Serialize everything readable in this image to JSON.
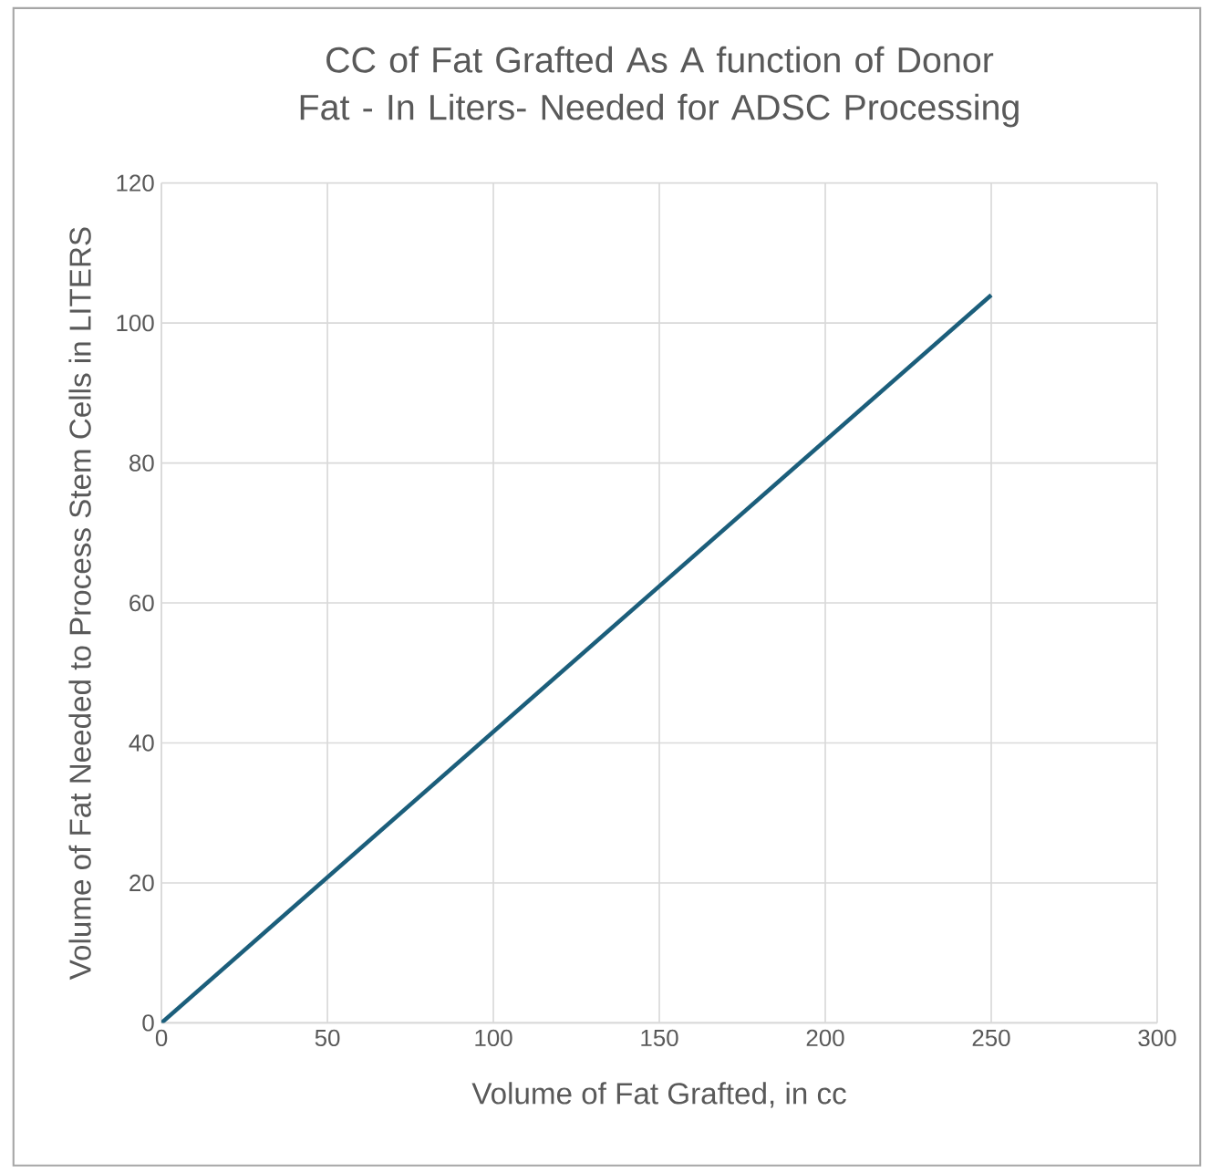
{
  "chart_data": {
    "type": "line",
    "title": "CC of Fat Grafted As A function of Donor Fat - In Liters- Needed for ADSC Processing",
    "xlabel": "Volume of Fat Grafted, in cc",
    "ylabel": "Volume of Fat Needed to Process Stem Cells  in LITERS",
    "x": [
      0,
      250
    ],
    "series": [
      {
        "color": "#1b5e7b",
        "values": [
          0,
          104
        ]
      }
    ],
    "xlim": [
      0,
      300
    ],
    "ylim": [
      0,
      120
    ],
    "xticks": [
      0,
      50,
      100,
      150,
      200,
      250,
      300
    ],
    "yticks": [
      0,
      20,
      40,
      60,
      80,
      100,
      120
    ],
    "grid": true,
    "marker": "none",
    "line_style": "solid"
  }
}
